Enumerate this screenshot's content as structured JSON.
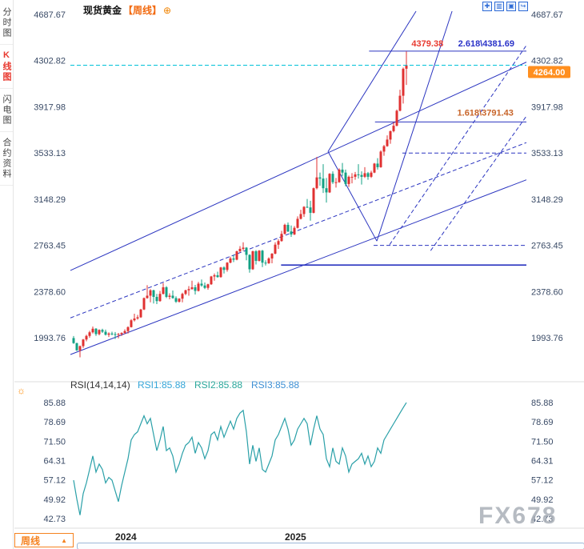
{
  "app": {
    "sidebar": {
      "tabs": [
        {
          "label": "分时图"
        },
        {
          "label": "K线图"
        },
        {
          "label": "闪电图"
        },
        {
          "label": "合约资料"
        }
      ],
      "active_tab": "K线图"
    },
    "header": {
      "symbol": "现货黄金",
      "period_tag": "【周线】",
      "add_icon": "⊕"
    },
    "toolbar": {
      "icons": [
        {
          "name": "new-pane-icon",
          "glyph": "✚"
        },
        {
          "name": "indicator-grid-icon",
          "glyph": "▥"
        },
        {
          "name": "chart-style-icon",
          "glyph": "▣"
        },
        {
          "name": "pop-out-icon",
          "glyph": "↪"
        }
      ]
    },
    "rsi_header": {
      "settings_glyph": "☼"
    },
    "footer": {
      "period_button": {
        "label": "周线",
        "arrow": "▲"
      },
      "watermark": "FX678"
    }
  },
  "chart_data": {
    "type": "candlestick",
    "title": "现货黄金【周线】",
    "price_axis_ticks": [
      "4687.67",
      "4302.82",
      "3917.98",
      "3533.13",
      "3148.29",
      "2763.45",
      "2378.60",
      "1993.76"
    ],
    "price_range": [
      1755,
      4714
    ],
    "current_price": "4264.00",
    "colors": {
      "up": "#e03131",
      "down": "#13a184",
      "trend": "#2b35c0",
      "current": "#00c2d8",
      "badge_bg": "#ff8f1f"
    },
    "candles": [
      [
        1992,
        2009,
        1944,
        1950
      ],
      [
        1950,
        1953,
        1885,
        1890
      ],
      [
        1890,
        1930,
        1832,
        1925
      ],
      [
        1925,
        1985,
        1910,
        1980
      ],
      [
        1980,
        2020,
        1965,
        2010
      ],
      [
        2010,
        2052,
        1995,
        2040
      ],
      [
        2040,
        2088,
        2030,
        2070
      ],
      [
        2070,
        2075,
        2010,
        2025
      ],
      [
        2025,
        2065,
        2015,
        2060
      ],
      [
        2060,
        2070,
        2035,
        2045
      ],
      [
        2045,
        2062,
        2013,
        2020
      ],
      [
        2020,
        2040,
        2001,
        2030
      ],
      [
        2030,
        2045,
        2015,
        2025
      ],
      [
        2025,
        2042,
        1984,
        2020
      ],
      [
        2020,
        2035,
        1990,
        2025
      ],
      [
        2025,
        2040,
        2010,
        2035
      ],
      [
        2035,
        2065,
        2025,
        2050
      ],
      [
        2050,
        2090,
        2030,
        2083
      ],
      [
        2083,
        2150,
        2080,
        2140
      ],
      [
        2140,
        2195,
        2130,
        2155
      ],
      [
        2155,
        2185,
        2145,
        2165
      ],
      [
        2165,
        2236,
        2160,
        2230
      ],
      [
        2230,
        2330,
        2225,
        2325
      ],
      [
        2325,
        2432,
        2320,
        2345
      ],
      [
        2345,
        2400,
        2290,
        2390
      ],
      [
        2390,
        2395,
        2280,
        2335
      ],
      [
        2335,
        2360,
        2275,
        2300
      ],
      [
        2300,
        2385,
        2295,
        2360
      ],
      [
        2360,
        2450,
        2355,
        2415
      ],
      [
        2415,
        2425,
        2325,
        2335
      ],
      [
        2335,
        2365,
        2315,
        2345
      ],
      [
        2345,
        2388,
        2320,
        2325
      ],
      [
        2325,
        2340,
        2285,
        2295
      ],
      [
        2295,
        2325,
        2287,
        2320
      ],
      [
        2320,
        2370,
        2290,
        2360
      ],
      [
        2360,
        2395,
        2350,
        2390
      ],
      [
        2390,
        2425,
        2345,
        2400
      ],
      [
        2400,
        2470,
        2395,
        2415
      ],
      [
        2415,
        2435,
        2355,
        2385
      ],
      [
        2385,
        2460,
        2380,
        2445
      ],
      [
        2445,
        2480,
        2420,
        2430
      ],
      [
        2430,
        2455,
        2400,
        2410
      ],
      [
        2410,
        2445,
        2395,
        2440
      ],
      [
        2440,
        2510,
        2435,
        2505
      ],
      [
        2505,
        2530,
        2470,
        2515
      ],
      [
        2515,
        2545,
        2495,
        2500
      ],
      [
        2500,
        2585,
        2495,
        2580
      ],
      [
        2580,
        2590,
        2530,
        2560
      ],
      [
        2560,
        2625,
        2545,
        2620
      ],
      [
        2620,
        2670,
        2615,
        2655
      ],
      [
        2655,
        2685,
        2625,
        2645
      ],
      [
        2645,
        2720,
        2640,
        2715
      ],
      [
        2715,
        2758,
        2705,
        2735
      ],
      [
        2735,
        2790,
        2720,
        2745
      ],
      [
        2745,
        2750,
        2640,
        2685
      ],
      [
        2685,
        2690,
        2536,
        2565
      ],
      [
        2565,
        2720,
        2560,
        2715
      ],
      [
        2715,
        2725,
        2605,
        2635
      ],
      [
        2635,
        2725,
        2630,
        2720
      ],
      [
        2720,
        2726,
        2583,
        2620
      ],
      [
        2620,
        2640,
        2596,
        2615
      ],
      [
        2615,
        2665,
        2610,
        2655
      ],
      [
        2655,
        2700,
        2615,
        2695
      ],
      [
        2695,
        2790,
        2690,
        2770
      ],
      [
        2770,
        2815,
        2735,
        2800
      ],
      [
        2800,
        2885,
        2795,
        2860
      ],
      [
        2860,
        2945,
        2855,
        2935
      ],
      [
        2935,
        2955,
        2875,
        2880
      ],
      [
        2880,
        2930,
        2835,
        2855
      ],
      [
        2855,
        2925,
        2850,
        2910
      ],
      [
        2910,
        3005,
        2905,
        2985
      ],
      [
        2985,
        3060,
        2980,
        3025
      ],
      [
        3025,
        3090,
        3000,
        3085
      ],
      [
        3085,
        3150,
        3075,
        3080
      ],
      [
        3080,
        3135,
        2970,
        3035
      ],
      [
        3035,
        3245,
        3030,
        3240
      ],
      [
        3240,
        3500,
        3230,
        3330
      ],
      [
        3330,
        3370,
        3260,
        3320
      ],
      [
        3320,
        3440,
        3200,
        3240
      ],
      [
        3240,
        3325,
        3120,
        3205
      ],
      [
        3205,
        3365,
        3200,
        3360
      ],
      [
        3360,
        3380,
        3275,
        3290
      ],
      [
        3290,
        3325,
        3245,
        3290
      ],
      [
        3290,
        3405,
        3285,
        3395
      ],
      [
        3395,
        3450,
        3340,
        3370
      ],
      [
        3370,
        3395,
        3255,
        3275
      ],
      [
        3275,
        3345,
        3250,
        3335
      ],
      [
        3335,
        3365,
        3280,
        3335
      ],
      [
        3335,
        3375,
        3310,
        3355
      ],
      [
        3355,
        3440,
        3320,
        3350
      ],
      [
        3350,
        3380,
        3270,
        3335
      ],
      [
        3335,
        3415,
        3325,
        3365
      ],
      [
        3365,
        3375,
        3310,
        3335
      ],
      [
        3335,
        3385,
        3325,
        3370
      ],
      [
        3370,
        3450,
        3365,
        3445
      ],
      [
        3445,
        3490,
        3395,
        3415
      ],
      [
        3415,
        3555,
        3410,
        3545
      ],
      [
        3545,
        3600,
        3510,
        3590
      ],
      [
        3590,
        3680,
        3585,
        3645
      ],
      [
        3645,
        3720,
        3610,
        3715
      ],
      [
        3715,
        3790,
        3705,
        3760
      ],
      [
        3760,
        3895,
        3755,
        3885
      ],
      [
        3885,
        4060,
        3880,
        4010
      ],
      [
        4010,
        4245,
        3945,
        4235
      ],
      [
        4235,
        4379.38,
        4100,
        4264
      ]
    ],
    "year_marks": [
      {
        "label": "2024",
        "index": 13
      },
      {
        "label": "2025",
        "index": 66
      }
    ],
    "lines": [
      {
        "x1": 0.0,
        "p1": 1855,
        "x2": 1.0,
        "p2": 3310,
        "dash": false,
        "w": 1
      },
      {
        "x1": 0.0,
        "p1": 2160,
        "x2": 1.0,
        "p2": 3620,
        "dash": true,
        "w": 1
      },
      {
        "x1": 0.0,
        "p1": 2555,
        "x2": 1.0,
        "p2": 4290,
        "dash": false,
        "w": 1
      },
      {
        "x1": 0.565,
        "p1": 3545,
        "x2": 0.758,
        "p2": 4714,
        "dash": false,
        "w": 1
      },
      {
        "x1": 0.565,
        "p1": 3545,
        "x2": 0.672,
        "p2": 2800,
        "dash": false,
        "w": 1
      },
      {
        "x1": 0.672,
        "p1": 2800,
        "x2": 0.837,
        "p2": 4714,
        "dash": false,
        "w": 1
      },
      {
        "x1": 0.7,
        "p1": 2770,
        "x2": 1.0,
        "p2": 4430,
        "dash": true,
        "w": 1
      },
      {
        "x1": 0.79,
        "p1": 2720,
        "x2": 1.0,
        "p2": 3840,
        "dash": true,
        "w": 1
      },
      {
        "x1": 0.655,
        "p1": 4381.69,
        "x2": 1.0,
        "p2": 4381.69,
        "dash": false,
        "w": 1
      },
      {
        "x1": 0.668,
        "p1": 3791.43,
        "x2": 1.0,
        "p2": 3791.43,
        "dash": false,
        "w": 1
      },
      {
        "x1": 0.462,
        "p1": 2600,
        "x2": 1.0,
        "p2": 2600,
        "dash": false,
        "w": 1.6
      },
      {
        "x1": 0.665,
        "p1": 2763.45,
        "x2": 1.0,
        "p2": 2763.45,
        "dash": true,
        "w": 1
      },
      {
        "x1": 0.728,
        "p1": 3533.13,
        "x2": 1.0,
        "p2": 3533.13,
        "dash": true,
        "w": 1
      }
    ],
    "labels": [
      {
        "text": "4379.38",
        "x": 0.783,
        "p": 4420,
        "color": "#e8392f"
      },
      {
        "text": "2.618\\4381.69",
        "x": 0.912,
        "p": 4420,
        "color": "#2a32c8"
      },
      {
        "text": "1.618\\3791.43",
        "x": 0.91,
        "p": 3845,
        "color": "#c8652a"
      }
    ],
    "rsi": {
      "label": "RSI(14,14,14)",
      "series_labels": [
        {
          "text": "RSI1:85.88",
          "color": "#35a6d8"
        },
        {
          "text": "RSI2:85.88",
          "color": "#2aa79b"
        },
        {
          "text": "RSI3:85.88",
          "color": "#3d8fd4"
        }
      ],
      "axis_ticks": [
        "85.88",
        "78.69",
        "71.50",
        "64.31",
        "57.12",
        "49.92",
        "42.73"
      ],
      "range": [
        42.1,
        86.8
      ],
      "line_color": "#2aa0a8",
      "values": [
        57,
        50,
        44,
        52,
        56,
        61,
        66,
        60,
        63,
        61,
        56,
        58,
        57,
        53,
        49,
        55,
        60,
        65,
        72,
        74,
        75,
        78,
        81,
        78,
        80,
        74,
        68,
        72,
        77,
        68,
        69,
        66,
        60,
        63,
        67,
        70,
        71,
        73,
        67,
        71,
        69,
        65,
        68,
        74,
        75,
        72,
        77,
        73,
        76,
        79,
        76,
        80,
        82,
        83,
        75,
        63,
        70,
        64,
        69,
        61,
        60,
        63,
        66,
        72,
        74,
        77,
        80,
        76,
        70,
        72,
        76,
        78,
        80,
        78,
        70,
        76,
        81,
        76,
        74,
        65,
        62,
        69,
        64,
        63,
        69,
        66,
        60,
        63,
        64,
        65,
        67,
        63,
        66,
        62,
        64,
        69,
        67,
        72,
        74,
        76,
        78,
        80,
        82,
        84,
        85.88
      ]
    }
  }
}
